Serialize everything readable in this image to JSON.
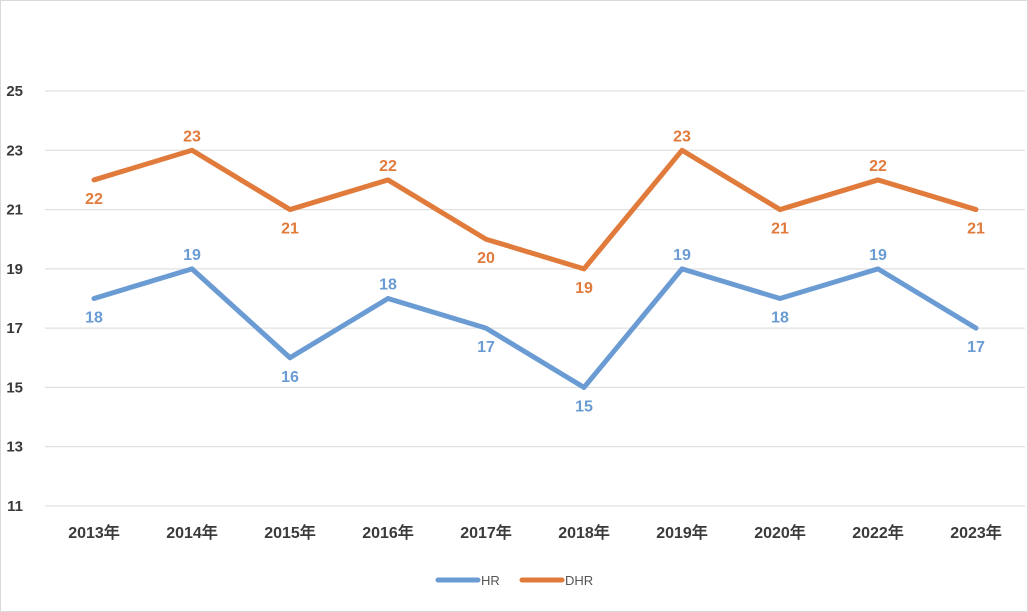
{
  "chart_data": {
    "type": "line",
    "categories": [
      "2013年",
      "2014年",
      "2015年",
      "2016年",
      "2017年",
      "2018年",
      "2019年",
      "2020年",
      "2022年",
      "2023年"
    ],
    "series": [
      {
        "name": "HR",
        "color": "#6a9bd3",
        "values": [
          18,
          19,
          16,
          18,
          17,
          15,
          19,
          18,
          19,
          17
        ]
      },
      {
        "name": "DHR",
        "color": "#e07b3c",
        "values": [
          22,
          23,
          21,
          22,
          20,
          19,
          23,
          21,
          22,
          21
        ]
      }
    ],
    "ylim": [
      11,
      25
    ],
    "yticks": [
      11,
      13,
      15,
      17,
      19,
      21,
      23,
      25
    ],
    "grid": true,
    "legend_position": "bottom",
    "data_labels": true
  }
}
